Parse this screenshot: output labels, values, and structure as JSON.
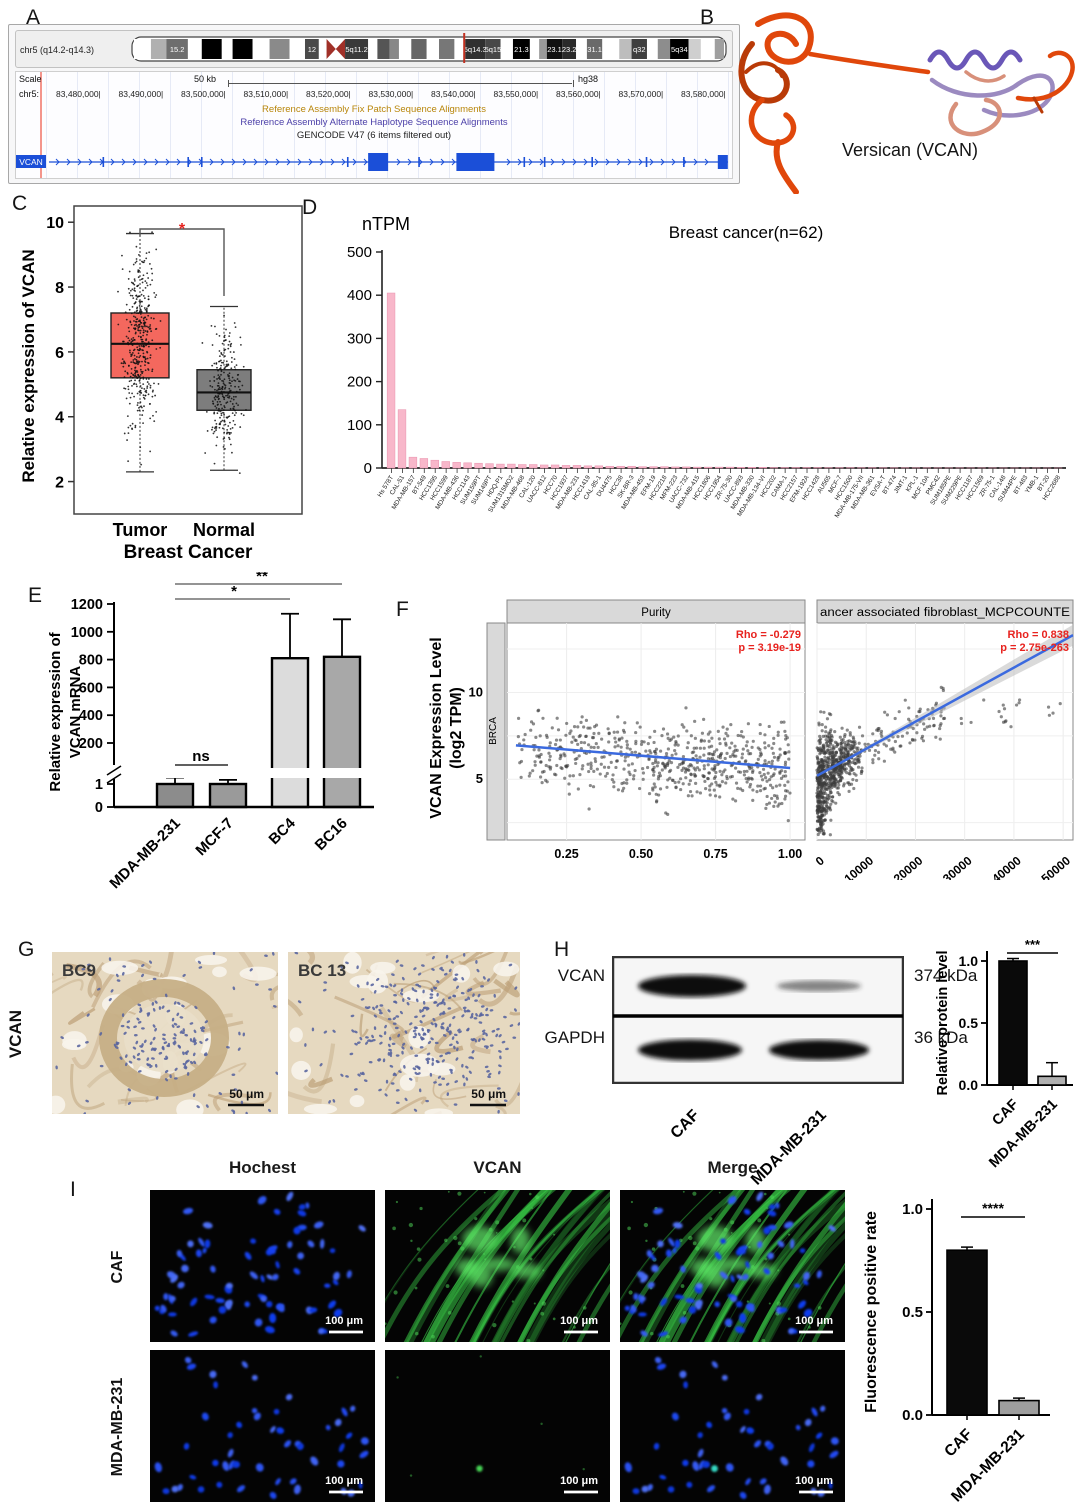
{
  "panels": {
    "A": {
      "letter": "A",
      "ideogram_label": "chr5 (q14.2-q14.3)",
      "bands": [
        {
          "w": 2.2,
          "c": "#ffffff"
        },
        {
          "w": 2.0,
          "c": "#b0b0b0"
        },
        {
          "w": 2.8,
          "c": "#6e6e6e",
          "t": "15.2"
        },
        {
          "w": 1.8,
          "c": "#ffffff"
        },
        {
          "w": 2.6,
          "c": "#000000"
        },
        {
          "w": 1.4,
          "c": "#ffffff"
        },
        {
          "w": 2.6,
          "c": "#000000"
        },
        {
          "w": 2.2,
          "c": "#ffffff"
        },
        {
          "w": 2.6,
          "c": "#8a8a8a"
        },
        {
          "w": 2.0,
          "c": "#ffffff"
        },
        {
          "w": 1.8,
          "c": "#4a4a4a",
          "t": "12"
        },
        {
          "w": 1.0,
          "c": "#ffffff"
        },
        {
          "w": 2.4,
          "c": "cen"
        },
        {
          "w": 3.0,
          "c": "#3a3a3a",
          "t": "5q11.2"
        },
        {
          "w": 1.2,
          "c": "#ffffff"
        },
        {
          "w": 1.6,
          "c": "#555555"
        },
        {
          "w": 1.2,
          "c": "#888888"
        },
        {
          "w": 1.6,
          "c": "#ffffff"
        },
        {
          "w": 2.0,
          "c": "#666666"
        },
        {
          "w": 1.6,
          "c": "#ffffff"
        },
        {
          "w": 2.0,
          "c": "#777777"
        },
        {
          "w": 1.4,
          "c": "#ffffff"
        },
        {
          "w": 2.6,
          "c": "#303030",
          "t": "5q14.3",
          "m": true
        },
        {
          "w": 2.0,
          "c": "#484848",
          "t": "5q15"
        },
        {
          "w": 1.6,
          "c": "#ffffff"
        },
        {
          "w": 2.2,
          "c": "#000000",
          "t": "21.3"
        },
        {
          "w": 1.2,
          "c": "#ffffff"
        },
        {
          "w": 1.0,
          "c": "#9a9a9a"
        },
        {
          "w": 2.0,
          "c": "#111111",
          "t": "23.1"
        },
        {
          "w": 1.8,
          "c": "#2a2a2a",
          "t": "23.2"
        },
        {
          "w": 1.4,
          "c": "#ffffff"
        },
        {
          "w": 2.0,
          "c": "#6a6a6a",
          "t": "31.1"
        },
        {
          "w": 2.2,
          "c": "#ffffff"
        },
        {
          "w": 1.6,
          "c": "#bdbdbd"
        },
        {
          "w": 2.0,
          "c": "#3f3f3f",
          "t": "q32"
        },
        {
          "w": 1.4,
          "c": "#ffffff"
        },
        {
          "w": 1.6,
          "c": "#8d8d8d"
        },
        {
          "w": 2.4,
          "c": "#000000",
          "t": "5q34"
        },
        {
          "w": 1.6,
          "c": "#cfcfcf"
        },
        {
          "w": 1.8,
          "c": "#ffffff"
        },
        {
          "w": 1.2,
          "c": "#9f9f9f"
        }
      ],
      "scale_label": "Scale",
      "scale_value": "50 kb",
      "assembly": "hg38",
      "chrom_prefix": "chr5:",
      "coords": [
        "83,480,000",
        "83,490,000",
        "83,500,000",
        "83,510,000",
        "83,520,000",
        "83,530,000",
        "83,540,000",
        "83,550,000",
        "83,560,000",
        "83,570,000",
        "83,580,000"
      ],
      "notes": [
        {
          "text": "Reference Assembly Fix Patch Sequence Alignments",
          "color": "#b8860b"
        },
        {
          "text": "Reference Assembly Alternate Haplotype Sequence Alignments",
          "color": "#4b3fa8"
        },
        {
          "text": "GENCODE V47 (6 items filtered out)",
          "color": "#222222"
        }
      ],
      "gene": "VCAN",
      "gene_color": "#1b4fd8"
    },
    "B": {
      "letter": "B",
      "caption": "Versican (VCAN)"
    },
    "C": {
      "letter": "C"
    },
    "D": {
      "letter": "D"
    },
    "E": {
      "letter": "E"
    },
    "F": {
      "letter": "F"
    },
    "G": {
      "letter": "G",
      "side_label": "VCAN",
      "images": [
        {
          "name": "BC9",
          "scale_bar": "50 μm"
        },
        {
          "name": "BC 13",
          "scale_bar": "50 μm"
        }
      ]
    },
    "H": {
      "letter": "H",
      "rows": [
        {
          "protein": "VCAN",
          "kda": "374 kDa"
        },
        {
          "protein": "GAPDH",
          "kda": "36 kDa"
        }
      ],
      "lanes": [
        "CAF",
        "MDA-MB-231"
      ]
    },
    "I": {
      "letter": "I",
      "columns": [
        "Hochest",
        "VCAN",
        "Merge"
      ],
      "rows": [
        "CAF",
        "MDA-MB-231"
      ],
      "scale_bar": "100 μm"
    }
  },
  "chart_data": [
    {
      "id": "C",
      "type": "boxplot",
      "xlabel": "Breast Cancer",
      "ylabel": "Relative expression of VCAN",
      "ylim": [
        1,
        10.5
      ],
      "yticks": [
        2,
        4,
        6,
        8,
        10
      ],
      "groups": [
        {
          "name": "Tumor",
          "color": "#f4685e",
          "q1": 5.2,
          "median": 6.25,
          "q3": 7.2,
          "whisker_low": 2.3,
          "whisker_high": 9.65,
          "n_points": 420,
          "point_mean": 6.2,
          "point_sd": 1.3
        },
        {
          "name": "Normal",
          "color": "#7d7d7d",
          "q1": 4.2,
          "median": 4.75,
          "q3": 5.45,
          "whisker_low": 2.35,
          "whisker_high": 7.4,
          "n_points": 260,
          "point_mean": 4.8,
          "point_sd": 0.95
        }
      ],
      "significance": "*",
      "sig_color": "#e8231f"
    },
    {
      "id": "D",
      "type": "bar",
      "title": "Breast cancer(n=62)",
      "ylabel": "nTPM",
      "ylim": [
        0,
        500
      ],
      "yticks": [
        0,
        100,
        200,
        300,
        400,
        500
      ],
      "bar_color": "#f8b7ca",
      "bar_stroke": "#eb9bb4",
      "categories": [
        "Hs 578T",
        "CAL-51",
        "MDA-MB-157",
        "BT-549",
        "HCC1395",
        "HCC1599",
        "MDA-MB-436",
        "HCC1143",
        "SUM159PT",
        "SUM149PT",
        "HDQ-P1",
        "SUM1315MO2",
        "MDA-MB-468",
        "CAL-120",
        "UACC-812",
        "HCC70",
        "HCC1937",
        "MDA-MB-231",
        "HCC1419",
        "CAL-85-1",
        "DU4475",
        "HCC38",
        "SK-BR-3",
        "MDA-MB-453",
        "EFM-19",
        "HCC2218",
        "MFM-223",
        "UACC-732",
        "MDA-MB-415",
        "HCC1806",
        "HCC1954",
        "ZR-75-30",
        "UACC-893",
        "MDA-MB-330",
        "MDA-MB-134-VI",
        "HCC202",
        "CAMA-1",
        "HCC2157",
        "EFM-192A",
        "HCC1428",
        "AU565",
        "MCF-7",
        "HCC1500",
        "MDA-MB-175-VII",
        "MDA-MB-361",
        "EVSA-T",
        "BT-474",
        "JIMT-1",
        "KPL-1",
        "MCF 10A",
        "PMC42",
        "SUM185PE",
        "SUM229PE",
        "HCC1187",
        "HCC1569",
        "ZR-75-1",
        "CAL-148",
        "SUM44PE",
        "BT-483",
        "YMB-1",
        "BT-20",
        "HCC2688"
      ],
      "values": [
        405,
        135,
        25,
        22,
        18,
        15,
        13,
        12,
        11,
        10,
        9,
        9,
        8,
        8,
        7,
        7,
        6,
        6,
        5,
        5,
        4,
        4,
        4,
        3,
        3,
        3,
        2.5,
        2.5,
        2,
        2,
        2,
        2,
        1.5,
        1.5,
        1.5,
        1,
        1,
        1,
        1,
        1,
        0.8,
        0.8,
        0.8,
        0.6,
        0.6,
        0.5,
        0.5,
        0.5,
        0.4,
        0.4,
        0.3,
        0.3,
        0.3,
        0.2,
        0.2,
        0.2,
        0.1,
        0.1,
        0.1,
        0.1,
        0.05,
        0.05
      ]
    },
    {
      "id": "E",
      "type": "bar",
      "ylabel_lines": [
        "Relative expression of",
        "VCAN mRNA"
      ],
      "yticks_upper": [
        200,
        400,
        600,
        800,
        1000,
        1200
      ],
      "yticks_lower": [
        0,
        1
      ],
      "categories": [
        "MDA-MB-231",
        "MCF-7",
        "BC4",
        "BC16"
      ],
      "values": [
        1,
        1,
        810,
        820
      ],
      "errors": [
        0.28,
        0.18,
        320,
        270
      ],
      "colors": [
        "#8c8c8c",
        "#9a9a9a",
        "#dcdcdc",
        "#a8a8a8"
      ],
      "significance": [
        {
          "pair": [
            0,
            1
          ],
          "label": "ns"
        },
        {
          "pair": [
            0,
            2
          ],
          "label": "*"
        },
        {
          "pair": [
            0,
            3
          ],
          "label": "**"
        }
      ]
    },
    {
      "id": "F",
      "type": "scatter",
      "ylabel_lines": [
        "VCAN Expression Level",
        "(log2 TPM)"
      ],
      "strip": "BRCA",
      "ylim": [
        1.5,
        14
      ],
      "yticks": [
        5,
        10
      ],
      "trend_color": "#3b6adf",
      "annot_color": "#e8231f",
      "point_color": "#3c3c3c",
      "panels": [
        {
          "header": "Purity",
          "rho": "Rho = -0.279",
          "p": "p =  3.19e-19",
          "xticks": [
            0.25,
            0.5,
            0.75,
            1.0
          ],
          "xtick_labels": [
            "0.25",
            "0.50",
            "0.75",
            "1.00"
          ],
          "xlim": [
            0.05,
            1.05
          ],
          "trend": {
            "x1": 0.08,
            "y1": 6.95,
            "x2": 1.0,
            "y2": 5.65
          },
          "n_points": 620
        },
        {
          "header": "ancer associated fibroblast_MCPCOUNTE",
          "rho": "Rho = 0.838",
          "p": "p = 2.75e-263",
          "xticks": [
            0,
            10000,
            20000,
            30000,
            40000,
            50000
          ],
          "xtick_labels": [
            "0",
            "10000",
            "20000",
            "30000",
            "40000",
            "50000"
          ],
          "xlim": [
            0,
            52000
          ],
          "trend": {
            "x1": 0,
            "y1": 5.2,
            "x2": 52000,
            "y2": 13.3
          },
          "n_points": 700
        }
      ]
    },
    {
      "id": "H_bar",
      "type": "bar",
      "ylabel": "Relative protein level",
      "ytick_labels": [
        "1.0",
        "0.5",
        "0.0"
      ],
      "yticks": [
        1.0,
        0.5,
        0.0
      ],
      "categories": [
        "CAF",
        "MDA-MB-231"
      ],
      "values": [
        1.0,
        0.07
      ],
      "errors": [
        0.02,
        0.11
      ],
      "colors": [
        "#0a0a0a",
        "#b0b0b0"
      ],
      "significance": "***"
    },
    {
      "id": "I_bar",
      "type": "bar",
      "ylabel": "Fluorescence positive rate",
      "ytick_labels": [
        "1.0",
        "0.5",
        "0.0"
      ],
      "yticks": [
        1.0,
        0.5,
        0.0
      ],
      "categories": [
        "CAF",
        "MDA-MB-231"
      ],
      "values": [
        0.8,
        0.07
      ],
      "errors": [
        0.015,
        0.012
      ],
      "colors": [
        "#0a0a0a",
        "#9e9e9e"
      ],
      "significance": "****"
    }
  ]
}
